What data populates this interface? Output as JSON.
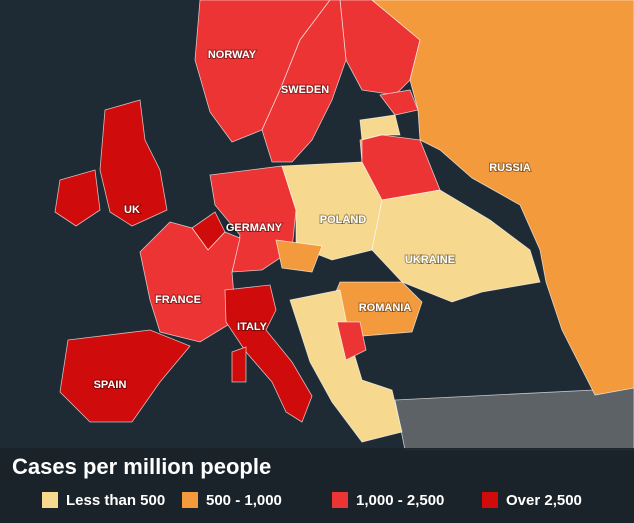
{
  "regions": [
    {
      "name": "NORWAY",
      "color": "#ec3434"
    },
    {
      "name": "SWEDEN",
      "color": "#ec3434"
    },
    {
      "name": "UK",
      "color": "#cf0b0b"
    },
    {
      "name": "GERMANY",
      "color": "#ec3434"
    },
    {
      "name": "POLAND",
      "color": "#f6d98e"
    },
    {
      "name": "RUSSIA",
      "color": "#f39a3c"
    },
    {
      "name": "UKRAINE",
      "color": "#f6d98e"
    },
    {
      "name": "FRANCE",
      "color": "#ec3434"
    },
    {
      "name": "ITALY",
      "color": "#cf0b0b"
    },
    {
      "name": "ROMANIA",
      "color": "#f39a3c"
    },
    {
      "name": "SPAIN",
      "color": "#cf0b0b"
    }
  ],
  "legend": {
    "title": "Cases per million people",
    "items": [
      {
        "label": "Less than 500",
        "color": "#f6d98e"
      },
      {
        "label": "500 - 1,000",
        "color": "#f39a3c"
      },
      {
        "label": "1,000 - 2,500",
        "color": "#ec3434"
      },
      {
        "label": "Over 2,500",
        "color": "#cf0b0b"
      }
    ]
  }
}
